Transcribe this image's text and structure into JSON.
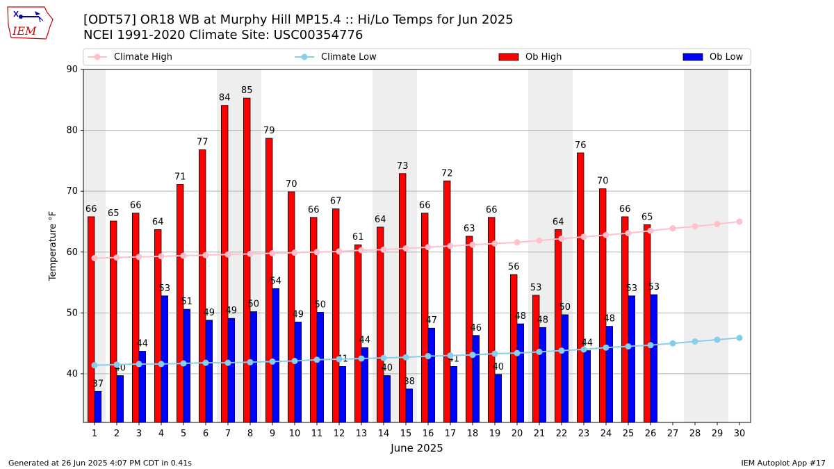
{
  "header": {
    "title_line1": "[ODT57] OR18 WB at Murphy Hill MP15.4  :: Hi/Lo Temps for Jun 2025",
    "title_line2": "NCEI 1991-2020 Climate Site: USC00354776",
    "logo_text": "IEM"
  },
  "footer": {
    "generated": "Generated at 26 Jun 2025 4:07 PM CDT in 0.41s",
    "app": "IEM Autoplot App #17"
  },
  "colors": {
    "ob_high": "#ff0000",
    "ob_low": "#0000ff",
    "climate_high": "#ffc0cb",
    "climate_low": "#87ceeb",
    "weekend_shade": "#eeeeee",
    "grid": "#b0b0b0",
    "logo": "#cc0000"
  },
  "chart_data": {
    "type": "bar",
    "xlabel": "June 2025",
    "ylabel": "Temperature °F",
    "ylim": [
      32,
      90
    ],
    "yticks": [
      40,
      50,
      60,
      70,
      80,
      90
    ],
    "grid": "horizontal",
    "legend": "top",
    "weekend_shading": [
      [
        1,
        1
      ],
      [
        7,
        8
      ],
      [
        14,
        15
      ],
      [
        21,
        22
      ],
      [
        28,
        29
      ]
    ],
    "days": [
      1,
      2,
      3,
      4,
      5,
      6,
      7,
      8,
      9,
      10,
      11,
      12,
      13,
      14,
      15,
      16,
      17,
      18,
      19,
      20,
      21,
      22,
      23,
      24,
      25,
      26,
      27,
      28,
      29,
      30
    ],
    "series": [
      {
        "name": "Climate High",
        "kind": "line",
        "values": [
          59.0,
          59.1,
          59.2,
          59.3,
          59.4,
          59.5,
          59.6,
          59.7,
          59.8,
          59.9,
          60.0,
          60.1,
          60.3,
          60.4,
          60.6,
          60.8,
          61.0,
          61.2,
          61.4,
          61.6,
          61.9,
          62.2,
          62.5,
          62.8,
          63.1,
          63.5,
          63.9,
          64.2,
          64.6,
          65.0
        ]
      },
      {
        "name": "Climate Low",
        "kind": "line",
        "values": [
          41.4,
          41.5,
          41.6,
          41.6,
          41.7,
          41.8,
          41.8,
          41.9,
          42.0,
          42.1,
          42.3,
          42.4,
          42.5,
          42.6,
          42.7,
          42.9,
          43.0,
          43.1,
          43.3,
          43.4,
          43.6,
          43.8,
          44.0,
          44.3,
          44.5,
          44.7,
          45.0,
          45.3,
          45.6,
          45.9
        ]
      },
      {
        "name": "Ob High",
        "kind": "bar",
        "values": [
          66,
          65,
          66,
          64,
          71,
          77,
          84,
          85,
          79,
          70,
          66,
          67,
          61,
          64,
          73,
          66,
          72,
          63,
          66,
          56,
          53,
          64,
          76,
          70,
          66,
          65,
          null,
          null,
          null,
          null
        ],
        "plotted": [
          65.8,
          65.1,
          66.4,
          63.7,
          71.1,
          76.8,
          84.1,
          85.3,
          78.7,
          69.9,
          65.7,
          67.1,
          61.2,
          64.1,
          72.9,
          66.4,
          71.7,
          62.6,
          65.7,
          56.3,
          52.9,
          63.7,
          76.3,
          70.4,
          65.8,
          64.5,
          null,
          null,
          null,
          null
        ]
      },
      {
        "name": "Ob Low",
        "kind": "bar",
        "values": [
          37,
          40,
          44,
          53,
          51,
          49,
          49,
          50,
          54,
          49,
          50,
          41,
          44,
          40,
          38,
          47,
          41,
          46,
          40,
          48,
          48,
          50,
          44,
          48,
          53,
          53,
          null,
          null,
          null,
          null
        ],
        "plotted": [
          37.1,
          39.7,
          43.7,
          52.8,
          50.6,
          48.8,
          49.1,
          50.2,
          54.0,
          48.5,
          50.1,
          41.2,
          44.3,
          39.7,
          37.5,
          47.5,
          41.2,
          46.3,
          39.9,
          48.2,
          47.6,
          49.7,
          43.8,
          47.8,
          52.8,
          53.0,
          null,
          null,
          null,
          null
        ]
      }
    ]
  }
}
